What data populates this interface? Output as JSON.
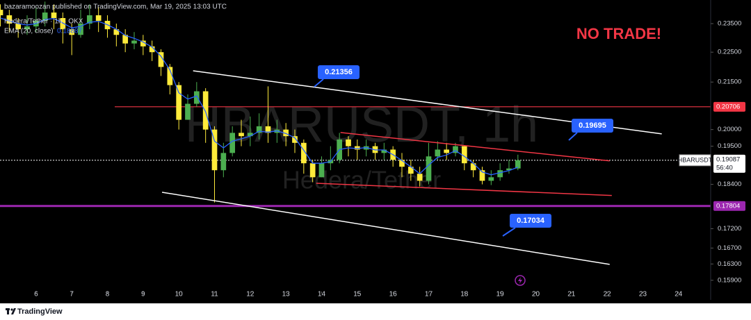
{
  "header": {
    "publisher": "bazaramoozan published on TradingView.com, Mar 19, 2025 13:03 UTC"
  },
  "chart_data": {
    "type": "candlestick",
    "symbol": "Hedera/Tether · 1h · OKX",
    "watermark_symbol": "HBARUSDT, 1h",
    "watermark_name": "Hedera/Tether",
    "log_scale": true,
    "up_color": "#4caf50",
    "down_color": "#ffeb3b",
    "x": [
      5,
      5.25,
      5.5,
      5.75,
      6,
      6.25,
      6.5,
      6.75,
      7,
      7.25,
      7.5,
      7.75,
      8,
      8.25,
      8.5,
      8.75,
      9,
      9.25,
      9.5,
      9.75,
      10,
      10.25,
      10.5,
      10.75,
      11,
      11.25,
      11.5,
      11.75,
      12,
      12.25,
      12.5,
      12.75,
      13,
      13.25,
      13.5,
      13.75,
      14,
      14.25,
      14.5,
      14.75,
      15,
      15.25,
      15.5,
      15.75,
      16,
      16.25,
      16.5,
      16.75,
      17,
      17.25,
      17.5,
      17.75,
      18,
      18.25,
      18.5,
      18.75,
      19,
      19.25,
      19.5
    ],
    "open": [
      0.24,
      0.238,
      0.235,
      0.233,
      0.234,
      0.236,
      0.239,
      0.237,
      0.233,
      0.231,
      0.235,
      0.238,
      0.236,
      0.233,
      0.231,
      0.228,
      0.229,
      0.227,
      0.225,
      0.22,
      0.214,
      0.203,
      0.208,
      0.212,
      0.2,
      0.188,
      0.193,
      0.199,
      0.198,
      0.199,
      0.201,
      0.199,
      0.2,
      0.198,
      0.196,
      0.19,
      0.186,
      0.19,
      0.191,
      0.197,
      0.195,
      0.194,
      0.195,
      0.193,
      0.194,
      0.191,
      0.189,
      0.187,
      0.185,
      0.192,
      0.194,
      0.193,
      0.195,
      0.19,
      0.188,
      0.185,
      0.186,
      0.188,
      0.1885
    ],
    "high": [
      0.242,
      0.24,
      0.237,
      0.238,
      0.241,
      0.243,
      0.242,
      0.239,
      0.235,
      0.24,
      0.242,
      0.241,
      0.238,
      0.235,
      0.233,
      0.232,
      0.231,
      0.229,
      0.226,
      0.221,
      0.215,
      0.211,
      0.215,
      0.213,
      0.201,
      0.196,
      0.201,
      0.203,
      0.204,
      0.205,
      0.2136,
      0.203,
      0.202,
      0.2,
      0.197,
      0.191,
      0.192,
      0.195,
      0.199,
      0.198,
      0.197,
      0.197,
      0.196,
      0.196,
      0.195,
      0.193,
      0.191,
      0.189,
      0.196,
      0.1965,
      0.196,
      0.196,
      0.195,
      0.191,
      0.189,
      0.188,
      0.19,
      0.191,
      0.1925
    ],
    "low": [
      0.234,
      0.232,
      0.23,
      0.231,
      0.232,
      0.234,
      0.233,
      0.228,
      0.224,
      0.23,
      0.233,
      0.232,
      0.23,
      0.227,
      0.225,
      0.226,
      0.224,
      0.222,
      0.217,
      0.211,
      0.2,
      0.203,
      0.207,
      0.196,
      0.179,
      0.186,
      0.192,
      0.195,
      0.195,
      0.197,
      0.196,
      0.196,
      0.195,
      0.193,
      0.187,
      0.1846,
      0.186,
      0.188,
      0.19,
      0.192,
      0.191,
      0.192,
      0.191,
      0.191,
      0.189,
      0.186,
      0.185,
      0.1834,
      0.184,
      0.191,
      0.191,
      0.192,
      0.188,
      0.186,
      0.184,
      0.1838,
      0.185,
      0.187,
      0.188
    ],
    "close": [
      0.238,
      0.235,
      0.233,
      0.234,
      0.236,
      0.239,
      0.237,
      0.233,
      0.231,
      0.235,
      0.238,
      0.236,
      0.233,
      0.231,
      0.228,
      0.229,
      0.227,
      0.225,
      0.22,
      0.214,
      0.203,
      0.208,
      0.212,
      0.2,
      0.188,
      0.193,
      0.199,
      0.198,
      0.199,
      0.201,
      0.199,
      0.2,
      0.198,
      0.196,
      0.19,
      0.186,
      0.19,
      0.191,
      0.197,
      0.195,
      0.194,
      0.195,
      0.193,
      0.194,
      0.191,
      0.189,
      0.187,
      0.185,
      0.192,
      0.194,
      0.193,
      0.195,
      0.19,
      0.188,
      0.185,
      0.186,
      0.188,
      0.1885,
      0.19087
    ],
    "indicator": {
      "name": "EMA (20, close)",
      "color": "#2962ff",
      "values": [
        0.237,
        0.236,
        0.235,
        0.2345,
        0.235,
        0.2365,
        0.2368,
        0.2352,
        0.2335,
        0.234,
        0.2355,
        0.2358,
        0.2346,
        0.233,
        0.2308,
        0.2298,
        0.2285,
        0.2268,
        0.2236,
        0.219,
        0.2115,
        0.2095,
        0.2105,
        0.2055,
        0.1965,
        0.1945,
        0.1965,
        0.1972,
        0.198,
        0.1995,
        0.1992,
        0.1996,
        0.1988,
        0.1975,
        0.1938,
        0.19,
        0.19,
        0.1905,
        0.194,
        0.1945,
        0.1943,
        0.1946,
        0.1939,
        0.1939,
        0.1925,
        0.1908,
        0.189,
        0.187,
        0.1895,
        0.1917,
        0.1924,
        0.1937,
        0.192,
        0.19,
        0.1875,
        0.1867,
        0.1873,
        0.1879,
        0.18887
      ]
    },
    "xlim": [
      4.99,
      24.9
    ],
    "xticks": [
      6,
      7,
      8,
      9,
      10,
      11,
      12,
      13,
      14,
      15,
      16,
      17,
      18,
      19,
      20,
      21,
      22,
      23,
      24
    ],
    "ylim": [
      0.1563,
      0.2436
    ],
    "yticks": [
      {
        "value": 0.235,
        "label": "0.23500"
      },
      {
        "value": 0.225,
        "label": "0.22500"
      },
      {
        "value": 0.215,
        "label": "0.21500"
      },
      {
        "value": 0.2,
        "label": "0.20000"
      },
      {
        "value": 0.195,
        "label": "0.19500"
      },
      {
        "value": 0.184,
        "label": "0.18400"
      },
      {
        "value": 0.172,
        "label": "0.17200"
      },
      {
        "value": 0.167,
        "label": "0.16700"
      },
      {
        "value": 0.163,
        "label": "0.16300"
      },
      {
        "value": 0.159,
        "label": "0.15900"
      }
    ],
    "price_tag": {
      "name": "HBARUSDT",
      "value": 0.19087,
      "countdown": "56:40"
    },
    "levels": [
      {
        "value": 0.20706,
        "color": "#f23645"
      },
      {
        "value": 0.17804,
        "color": "#9c27b0"
      }
    ],
    "trendlines": [
      {
        "x": [
          10.4,
          23.53
        ],
        "y": [
          0.2187,
          0.1987
        ],
        "color": "#ffffff"
      },
      {
        "x": [
          9.53,
          22.07
        ],
        "y": [
          0.1818,
          0.1629
        ],
        "color": "#ffffff"
      },
      {
        "x": [
          14.53,
          22.07
        ],
        "y": [
          0.1991,
          0.1907
        ],
        "color": "#f23645"
      },
      {
        "x": [
          13.85,
          22.13
        ],
        "y": [
          0.1843,
          0.1809
        ],
        "color": "#f23645"
      }
    ],
    "callouts": [
      0.21356,
      0.19695,
      0.17034
    ],
    "annotation": "NO TRADE!"
  },
  "footer": {
    "brand": "TradingView"
  }
}
